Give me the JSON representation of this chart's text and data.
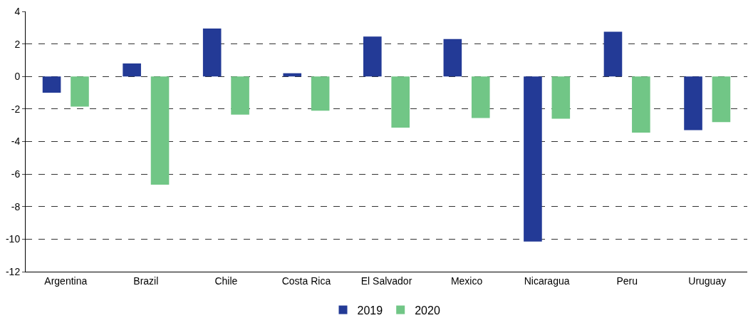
{
  "chart_data": {
    "type": "bar",
    "categories": [
      "Argentina",
      "Brazil",
      "Chile",
      "Costa Rica",
      "El Salvador",
      "Mexico",
      "Nicaragua",
      "Peru",
      "Uruguay"
    ],
    "series": [
      {
        "name": "2019",
        "color": "#233a96",
        "values": [
          -1.0,
          0.8,
          2.95,
          0.2,
          2.45,
          2.3,
          -10.15,
          2.75,
          -3.3
        ]
      },
      {
        "name": "2020",
        "color": "#71c686",
        "values": [
          -1.85,
          -6.65,
          -2.35,
          -2.1,
          -3.15,
          -2.55,
          -2.6,
          -3.45,
          -2.8
        ]
      }
    ],
    "ylim": [
      -12,
      4
    ],
    "yticks": [
      -12,
      -10,
      -8,
      -6,
      -4,
      -2,
      0,
      2,
      4
    ],
    "grid": "y",
    "line_style": "dashed",
    "legend": "bottom"
  }
}
